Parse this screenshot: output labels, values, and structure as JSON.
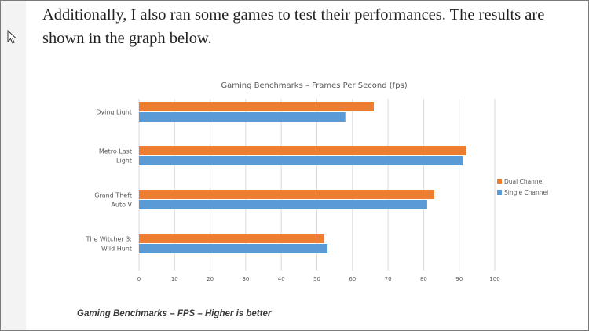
{
  "article": {
    "paragraph": "Additionally, I also ran some games to test their performances. The results are shown in the graph below.",
    "caption": "Gaming Benchmarks – FPS – Higher is better"
  },
  "colors": {
    "dual_channel": "#ED7D31",
    "single_channel": "#5B9BD5",
    "grid": "#D9D9D9"
  },
  "chart_data": {
    "type": "bar",
    "orientation": "horizontal",
    "title": "Gaming Benchmarks – Frames Per Second (fps)",
    "categories": [
      [
        "Dying Light"
      ],
      [
        "Metro Last",
        "Light"
      ],
      [
        "Grand Theft",
        "Auto V"
      ],
      [
        "The Witcher 3:",
        "Wild Hunt"
      ]
    ],
    "series": [
      {
        "name": "Dual Channel",
        "values": [
          66,
          92,
          83,
          52
        ]
      },
      {
        "name": "Single Channel",
        "values": [
          58,
          91,
          81,
          53
        ]
      }
    ],
    "xlim": [
      0,
      100
    ],
    "xticks": [
      0,
      10,
      20,
      30,
      40,
      50,
      60,
      70,
      80,
      90,
      100
    ],
    "grid": true,
    "legend_position": "right"
  }
}
